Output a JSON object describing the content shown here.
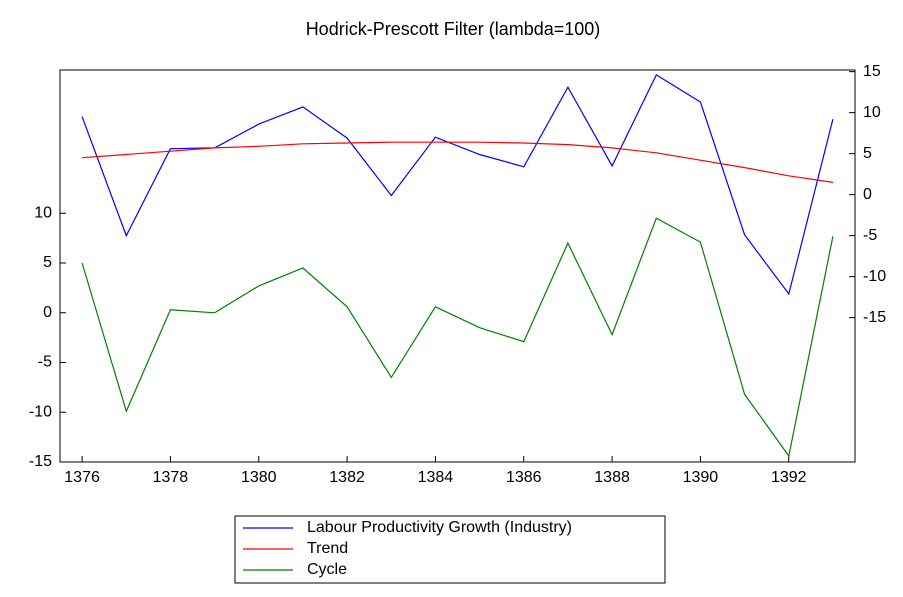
{
  "chart_data": {
    "type": "line",
    "title": "Hodrick-Prescott Filter (lambda=100)",
    "x": [
      1376,
      1377,
      1378,
      1379,
      1380,
      1381,
      1382,
      1383,
      1384,
      1385,
      1386,
      1387,
      1388,
      1389,
      1390,
      1391,
      1392,
      1393
    ],
    "xlim": [
      1375.5,
      1393.5
    ],
    "xticks": [
      1376,
      1378,
      1380,
      1382,
      1384,
      1386,
      1388,
      1390,
      1392
    ],
    "ylim": [
      -15,
      24.4
    ],
    "yticks": [
      -15,
      -10,
      -5,
      0,
      5,
      10
    ],
    "y2lim": [
      -32.6,
      15.2
    ],
    "y2ticks": [
      -15,
      -10,
      -5,
      0,
      5,
      10,
      15
    ],
    "legend": "bottom",
    "series": [
      {
        "name": "Labour Productivity Growth (Industry)",
        "color": "#0000ff",
        "axis": "y2",
        "values": [
          9.5,
          -5.0,
          5.6,
          5.7,
          8.6,
          10.7,
          6.9,
          -0.1,
          7.0,
          4.9,
          3.4,
          13.1,
          3.5,
          14.6,
          11.3,
          -4.9,
          -12.1,
          9.2
        ]
      },
      {
        "name": "Trend",
        "color": "#ff0000",
        "axis": "y2",
        "values": [
          4.5,
          4.9,
          5.3,
          5.7,
          5.9,
          6.2,
          6.3,
          6.4,
          6.4,
          6.4,
          6.3,
          6.1,
          5.7,
          5.1,
          4.2,
          3.3,
          2.3,
          1.5
        ]
      },
      {
        "name": "Cycle",
        "color": "#008000",
        "axis": "y",
        "values": [
          5.0,
          -9.9,
          0.3,
          0.0,
          2.7,
          4.5,
          0.6,
          -6.5,
          0.6,
          -1.5,
          -2.9,
          7.0,
          -2.2,
          9.5,
          7.1,
          -8.2,
          -14.4,
          7.7
        ]
      }
    ]
  }
}
